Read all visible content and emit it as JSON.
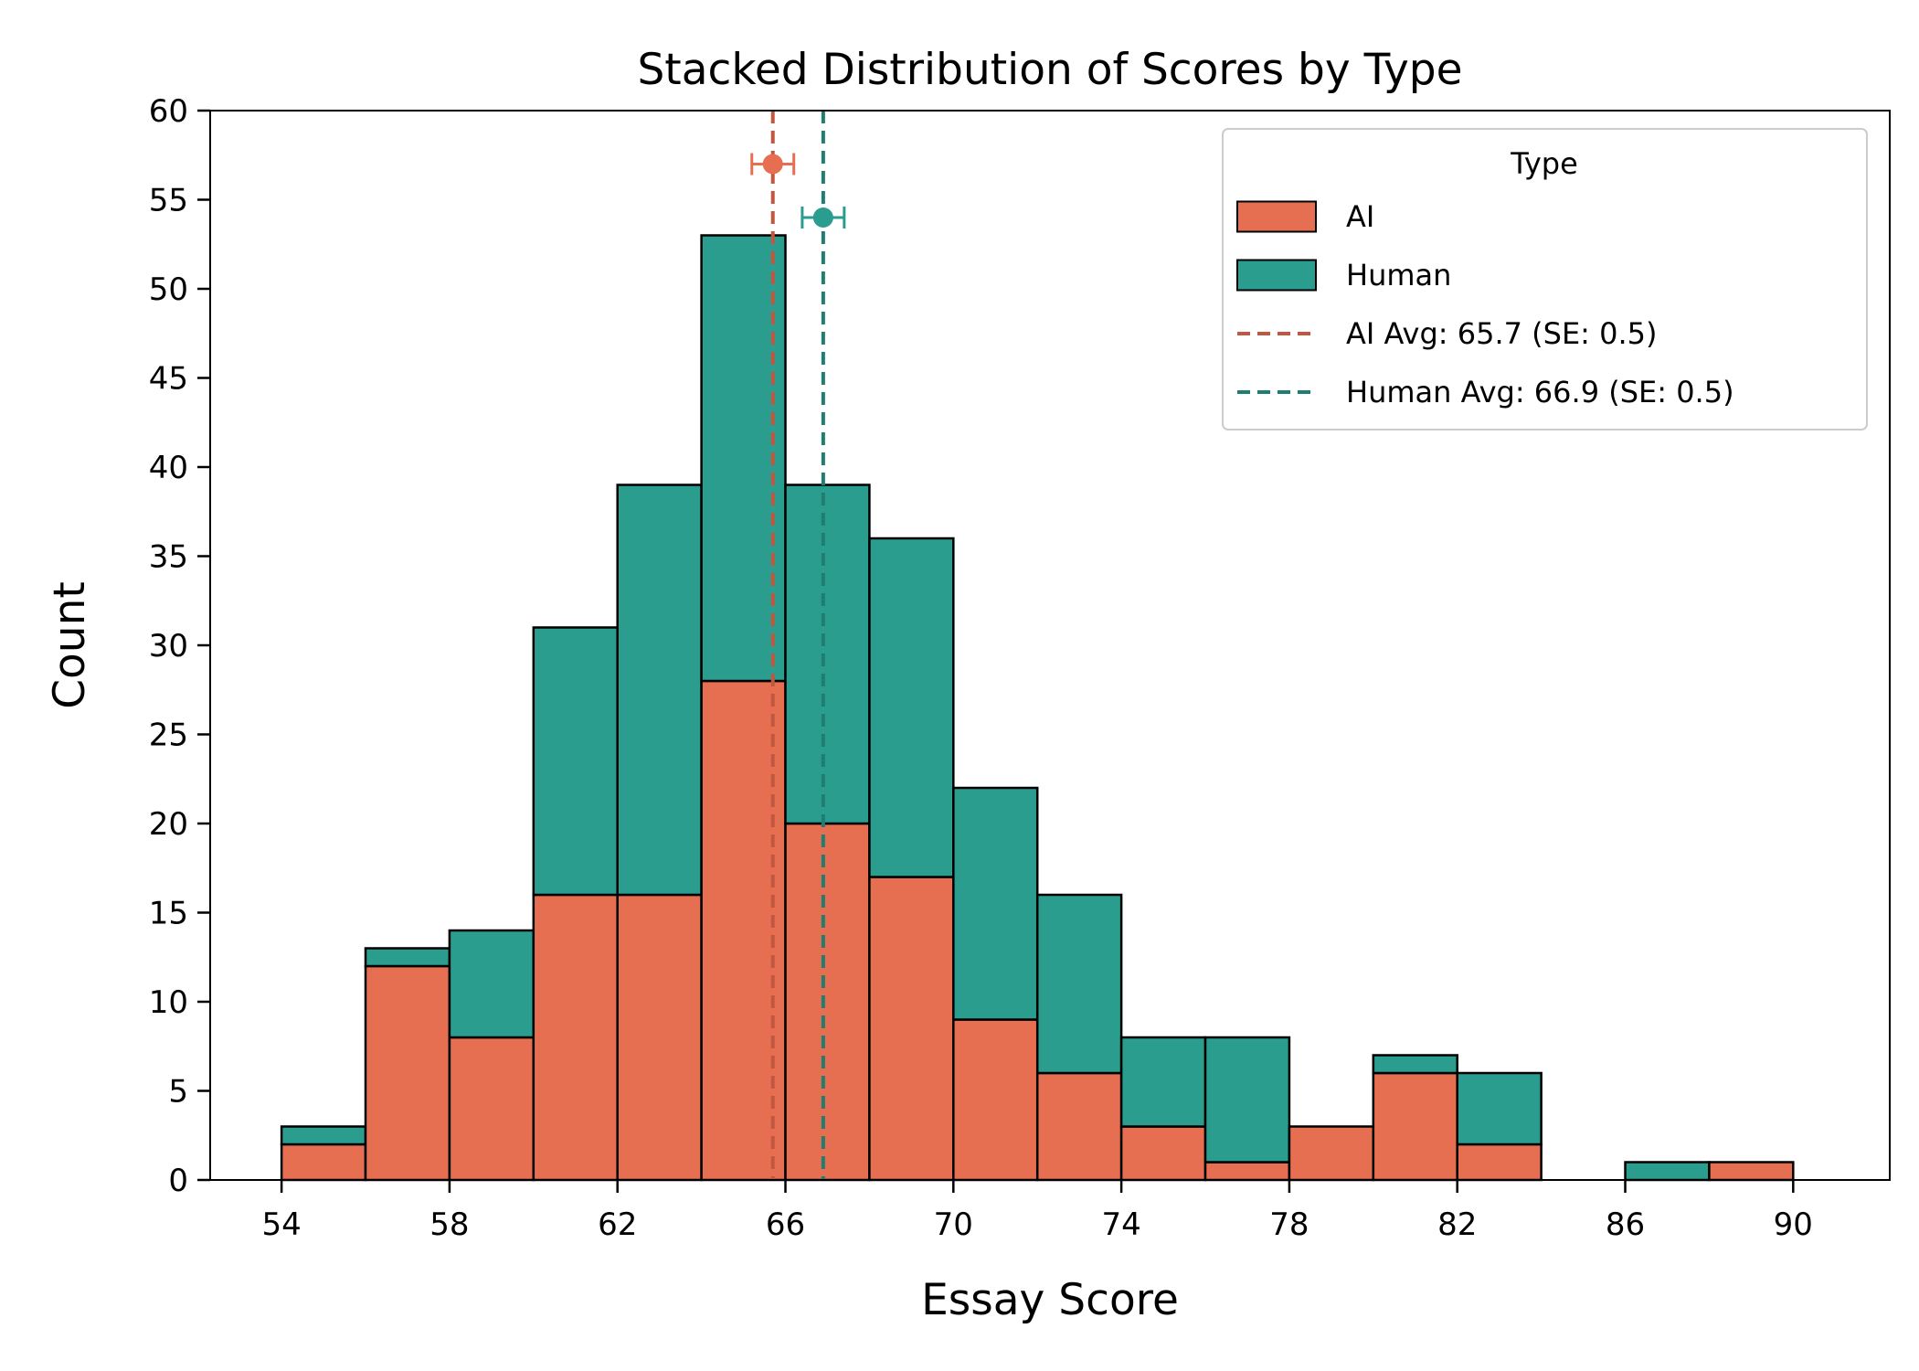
{
  "chart_data": {
    "type": "bar",
    "title": "Stacked Distribution of Scores by Type",
    "xlabel": "Essay Score",
    "ylabel": "Count",
    "xlim": [
      52.3,
      92.3
    ],
    "ylim": [
      0,
      60
    ],
    "x_ticks": [
      "54",
      "58",
      "62",
      "66",
      "70",
      "74",
      "78",
      "82",
      "86",
      "90"
    ],
    "x_tick_values": [
      54,
      58,
      62,
      66,
      70,
      74,
      78,
      82,
      86,
      90
    ],
    "y_ticks": [
      "0",
      "5",
      "10",
      "15",
      "20",
      "25",
      "30",
      "35",
      "40",
      "45",
      "50",
      "55",
      "60"
    ],
    "y_tick_values": [
      0,
      5,
      10,
      15,
      20,
      25,
      30,
      35,
      40,
      45,
      50,
      55,
      60
    ],
    "bin_edges": [
      54,
      56,
      58,
      60,
      62,
      64,
      66,
      68,
      70,
      72,
      74,
      76,
      78,
      80,
      82,
      84,
      86,
      88,
      90
    ],
    "stacked": true,
    "grid": false,
    "legend_position": "top-right",
    "legend_title": "Type",
    "series": [
      {
        "name": "AI",
        "color": "#e76f51",
        "values": [
          2,
          12,
          8,
          16,
          16,
          28,
          20,
          17,
          9,
          6,
          3,
          1,
          3,
          6,
          2,
          0,
          0,
          1
        ]
      },
      {
        "name": "Human",
        "color": "#2a9d8f",
        "values": [
          1,
          1,
          6,
          15,
          23,
          25,
          19,
          19,
          13,
          10,
          5,
          7,
          0,
          1,
          4,
          0,
          1,
          0
        ]
      }
    ],
    "reference_lines": [
      {
        "label": "AI Avg: 65.7 (SE: 0.5)",
        "x": 65.7,
        "se": 0.5,
        "marker_y": 57,
        "color": "#c0573f",
        "marker_color": "#e76f51"
      },
      {
        "label": "Human Avg: 66.9 (SE: 0.5)",
        "x": 66.9,
        "se": 0.5,
        "marker_y": 54,
        "color": "#1f7d72",
        "marker_color": "#2a9d8f"
      }
    ]
  }
}
